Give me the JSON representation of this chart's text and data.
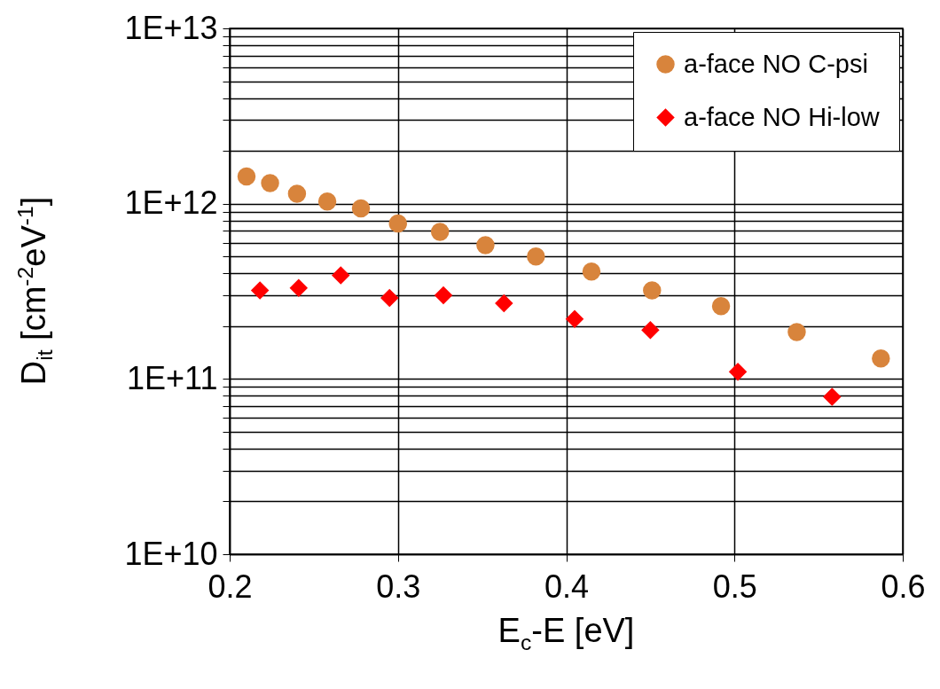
{
  "chart_data": {
    "type": "scatter",
    "xlabel": "E$_{c}$-E [eV]",
    "ylabel": "D$_{it}$ [cm$^{-2}$eV$^{-1}$]",
    "series": [
      {
        "name": "a-face NO C-psi",
        "color": "#d8843c",
        "marker": "circle",
        "x": [
          0.21,
          0.224,
          0.24,
          0.258,
          0.278,
          0.3,
          0.325,
          0.352,
          0.382,
          0.415,
          0.451,
          0.492,
          0.537,
          0.587
        ],
        "values": [
          1430000000000.0,
          1310000000000.0,
          1140000000000.0,
          1030000000000.0,
          940000000000.0,
          770000000000.0,
          690000000000.0,
          580000000000.0,
          500000000000.0,
          410000000000.0,
          320000000000.0,
          260000000000.0,
          185000000000.0,
          131000000000.0
        ]
      },
      {
        "name": "a-face NO Hi-low",
        "color": "#ff0000",
        "marker": "diamond",
        "x": [
          0.218,
          0.241,
          0.266,
          0.295,
          0.327,
          0.363,
          0.405,
          0.45,
          0.502,
          0.558
        ],
        "values": [
          320000000000.0,
          330000000000.0,
          390000000000.0,
          290000000000.0,
          300000000000.0,
          270000000000.0,
          220000000000.0,
          190000000000.0,
          110000000000.0,
          79000000000.0
        ]
      }
    ],
    "xlim": [
      0.2,
      0.6
    ],
    "xticks": [
      0.2,
      0.3,
      0.4,
      0.5,
      0.6
    ],
    "ylim": [
      10000000000.0,
      10000000000000.0
    ],
    "log": "y",
    "yticks": [
      {
        "value": 10000000000.0,
        "label": "1E+10"
      },
      {
        "value": 20000000000.0,
        "label": null
      },
      {
        "value": 30000000000.0,
        "label": null
      },
      {
        "value": 40000000000.0,
        "label": null
      },
      {
        "value": 50000000000.0,
        "label": null
      },
      {
        "value": 60000000000.0,
        "label": null
      },
      {
        "value": 70000000000.0,
        "label": null
      },
      {
        "value": 80000000000.0,
        "label": null
      },
      {
        "value": 90000000000.0,
        "label": null
      },
      {
        "value": 100000000000.0,
        "label": "1E+11"
      },
      {
        "value": 200000000000.0,
        "label": null
      },
      {
        "value": 300000000000.0,
        "label": null
      },
      {
        "value": 400000000000.0,
        "label": null
      },
      {
        "value": 500000000000.0,
        "label": null
      },
      {
        "value": 600000000000.0,
        "label": null
      },
      {
        "value": 700000000000.0,
        "label": null
      },
      {
        "value": 800000000000.0,
        "label": null
      },
      {
        "value": 900000000000.0,
        "label": null
      },
      {
        "value": 1000000000000.0,
        "label": "1E+12"
      },
      {
        "value": 2000000000000.0,
        "label": null
      },
      {
        "value": 3000000000000.0,
        "label": null
      },
      {
        "value": 4000000000000.0,
        "label": null
      },
      {
        "value": 5000000000000.0,
        "label": null
      },
      {
        "value": 6000000000000.0,
        "label": null
      },
      {
        "value": 7000000000000.0,
        "label": null
      },
      {
        "value": 8000000000000.0,
        "label": null
      },
      {
        "value": 9000000000000.0,
        "label": null
      },
      {
        "value": 10000000000000.0,
        "label": "1E+13"
      }
    ],
    "grid": true,
    "legend": "top right"
  }
}
